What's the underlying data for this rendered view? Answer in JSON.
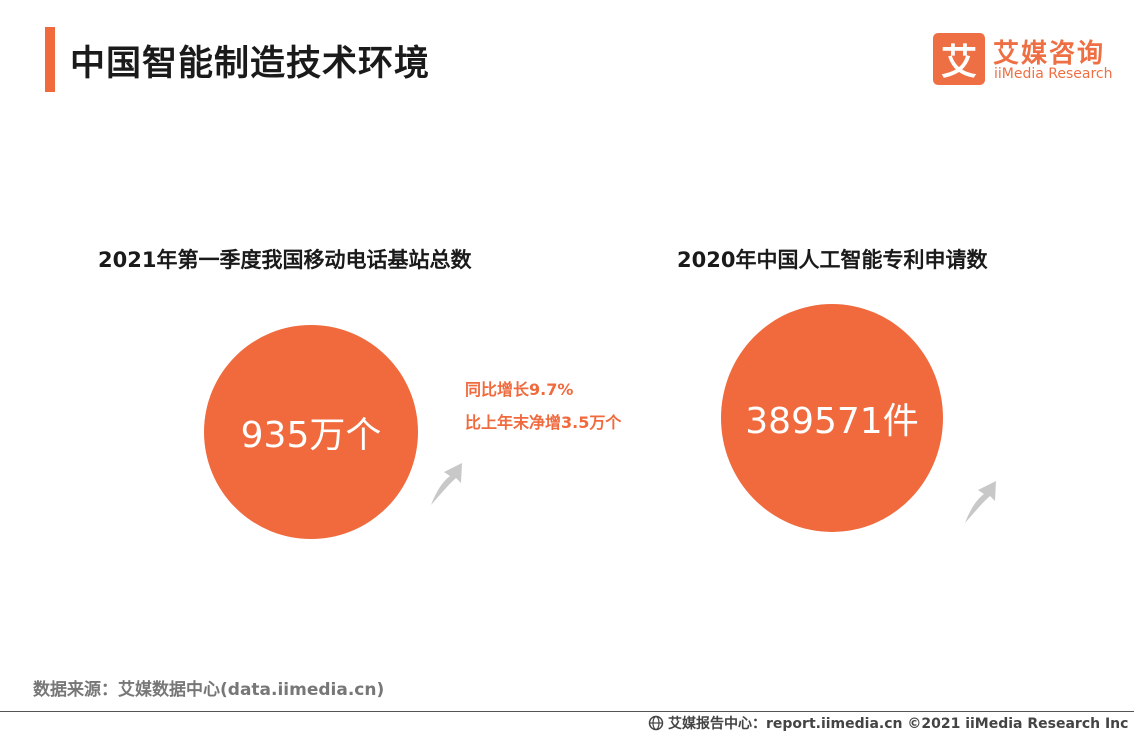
{
  "header": {
    "title": "中国智能制造技术环境",
    "accent_color": "#f06a3d"
  },
  "logo": {
    "mark": "艾",
    "name_cn": "艾媒咨询",
    "name_en": "iiMedia Research"
  },
  "metrics": [
    {
      "title": "2021年第一季度我国移动电话基站总数",
      "value": "935万个",
      "icon": "up-arrow-icon"
    },
    {
      "title": "2020年中国人工智能专利申请数",
      "value": "389571件",
      "icon": "up-arrow-icon"
    }
  ],
  "growth_notes": {
    "yoy": "同比增长9.7%",
    "vs_last_year": "比上年末净增3.5万个"
  },
  "source": "数据来源：艾媒数据中心(data.iimedia.cn)",
  "footer": {
    "icon": "globe-icon",
    "text": "艾媒报告中心：report.iimedia.cn ©2021  iiMedia Research  Inc"
  }
}
